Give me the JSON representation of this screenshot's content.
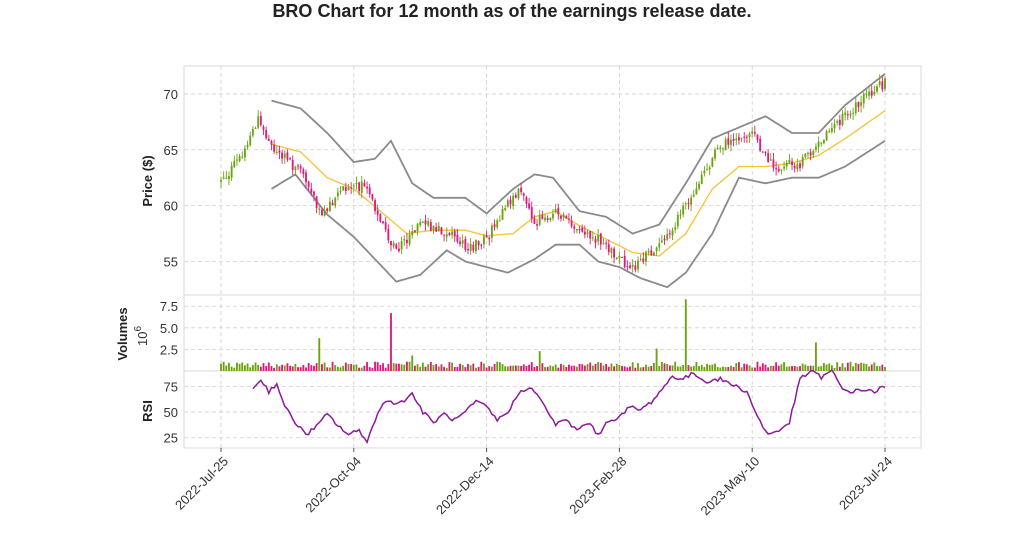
{
  "chart_data": {
    "type": "candlestick",
    "title": "BRO Chart for 12 month as of the earnings release date.",
    "x_ticks": [
      "2022-Jul-25",
      "2022-Oct-04",
      "2022-Dec-14",
      "2023-Feb-28",
      "2023-May-10",
      "2023-Jul-24"
    ],
    "panels": {
      "price": {
        "ylabel": "Price ($)",
        "yticks": [
          55,
          60,
          65,
          70
        ],
        "ylim": [
          52.0,
          72.5
        ],
        "close_keypoints": [
          [
            0,
            62.2
          ],
          [
            8,
            64.5
          ],
          [
            14,
            67.9
          ],
          [
            18,
            65.5
          ],
          [
            30,
            63.0
          ],
          [
            38,
            59.2
          ],
          [
            45,
            61.5
          ],
          [
            55,
            61.8
          ],
          [
            60,
            58.5
          ],
          [
            66,
            55.8
          ],
          [
            75,
            58.5
          ],
          [
            85,
            57.6
          ],
          [
            93,
            56.2
          ],
          [
            100,
            57.0
          ],
          [
            106,
            59.5
          ],
          [
            112,
            61.5
          ],
          [
            118,
            58.5
          ],
          [
            126,
            59.5
          ],
          [
            134,
            58.0
          ],
          [
            142,
            57.0
          ],
          [
            150,
            55.3
          ],
          [
            155,
            54.3
          ],
          [
            162,
            56.0
          ],
          [
            170,
            58.0
          ],
          [
            180,
            62.0
          ],
          [
            188,
            65.5
          ],
          [
            196,
            66.0
          ],
          [
            200,
            66.5
          ],
          [
            204,
            64.5
          ],
          [
            210,
            63.5
          ],
          [
            218,
            63.8
          ],
          [
            226,
            66.0
          ],
          [
            235,
            68.0
          ],
          [
            243,
            70.0
          ],
          [
            250,
            71.0
          ]
        ],
        "upper_band_keypoints": [
          [
            19,
            69.4
          ],
          [
            30,
            68.7
          ],
          [
            40,
            66.5
          ],
          [
            50,
            63.9
          ],
          [
            58,
            64.2
          ],
          [
            64,
            65.8
          ],
          [
            72,
            62.0
          ],
          [
            80,
            60.7
          ],
          [
            92,
            60.7
          ],
          [
            100,
            59.3
          ],
          [
            110,
            61.5
          ],
          [
            118,
            62.8
          ],
          [
            125,
            62.5
          ],
          [
            135,
            59.5
          ],
          [
            145,
            59.0
          ],
          [
            155,
            57.5
          ],
          [
            165,
            58.3
          ],
          [
            175,
            62.0
          ],
          [
            185,
            66.0
          ],
          [
            195,
            67.0
          ],
          [
            205,
            68.0
          ],
          [
            215,
            66.5
          ],
          [
            225,
            66.5
          ],
          [
            235,
            69.0
          ],
          [
            250,
            71.8
          ]
        ],
        "middle_band_keypoints": [
          [
            19,
            65.5
          ],
          [
            30,
            64.8
          ],
          [
            40,
            62.5
          ],
          [
            50,
            61.5
          ],
          [
            60,
            59.5
          ],
          [
            70,
            57.5
          ],
          [
            80,
            57.8
          ],
          [
            92,
            57.8
          ],
          [
            100,
            57.3
          ],
          [
            110,
            57.5
          ],
          [
            118,
            59.0
          ],
          [
            126,
            59.5
          ],
          [
            135,
            58.2
          ],
          [
            145,
            57.0
          ],
          [
            155,
            55.8
          ],
          [
            165,
            55.5
          ],
          [
            175,
            57.5
          ],
          [
            185,
            61.5
          ],
          [
            195,
            63.5
          ],
          [
            205,
            63.5
          ],
          [
            215,
            63.8
          ],
          [
            225,
            64.5
          ],
          [
            235,
            66.0
          ],
          [
            250,
            68.5
          ]
        ],
        "lower_band_keypoints": [
          [
            19,
            61.5
          ],
          [
            28,
            62.8
          ],
          [
            40,
            59.2
          ],
          [
            50,
            57.2
          ],
          [
            58,
            55.2
          ],
          [
            66,
            53.2
          ],
          [
            75,
            53.8
          ],
          [
            85,
            56.0
          ],
          [
            92,
            55.0
          ],
          [
            100,
            54.5
          ],
          [
            108,
            54.0
          ],
          [
            118,
            55.2
          ],
          [
            126,
            56.5
          ],
          [
            135,
            56.5
          ],
          [
            142,
            55.0
          ],
          [
            150,
            54.5
          ],
          [
            158,
            53.5
          ],
          [
            168,
            52.7
          ],
          [
            175,
            54.0
          ],
          [
            185,
            57.5
          ],
          [
            195,
            62.5
          ],
          [
            205,
            62.0
          ],
          [
            215,
            62.5
          ],
          [
            225,
            62.5
          ],
          [
            235,
            63.5
          ],
          [
            250,
            65.8
          ]
        ]
      },
      "volume": {
        "ylabel": "Volumes",
        "exponent_label": "10",
        "exponent": "6",
        "yticks": [
          "2.5",
          "5.0",
          "7.5"
        ],
        "ylim": [
          0,
          8.8
        ],
        "base_level": 0.8,
        "spikes": [
          [
            37,
            3.8
          ],
          [
            64,
            6.7
          ],
          [
            72,
            1.8
          ],
          [
            120,
            2.3
          ],
          [
            164,
            2.6
          ],
          [
            175,
            8.3
          ],
          [
            224,
            3.3
          ]
        ]
      },
      "rsi": {
        "ylabel": "RSI",
        "yticks": [
          25,
          50,
          75
        ],
        "ylim": [
          15,
          90
        ],
        "keypoints": [
          [
            12,
            72
          ],
          [
            15,
            82
          ],
          [
            18,
            70
          ],
          [
            21,
            78
          ],
          [
            24,
            55
          ],
          [
            28,
            40
          ],
          [
            32,
            28
          ],
          [
            36,
            36
          ],
          [
            40,
            48
          ],
          [
            44,
            37
          ],
          [
            48,
            28
          ],
          [
            52,
            32
          ],
          [
            55,
            22
          ],
          [
            59,
            48
          ],
          [
            62,
            62
          ],
          [
            67,
            58
          ],
          [
            72,
            68
          ],
          [
            76,
            50
          ],
          [
            80,
            40
          ],
          [
            84,
            48
          ],
          [
            88,
            42
          ],
          [
            92,
            50
          ],
          [
            96,
            60
          ],
          [
            100,
            55
          ],
          [
            104,
            42
          ],
          [
            108,
            50
          ],
          [
            112,
            68
          ],
          [
            116,
            75
          ],
          [
            118,
            70
          ],
          [
            122,
            55
          ],
          [
            126,
            38
          ],
          [
            130,
            42
          ],
          [
            134,
            32
          ],
          [
            138,
            40
          ],
          [
            142,
            28
          ],
          [
            146,
            42
          ],
          [
            150,
            45
          ],
          [
            154,
            55
          ],
          [
            158,
            52
          ],
          [
            162,
            60
          ],
          [
            166,
            72
          ],
          [
            170,
            85
          ],
          [
            174,
            82
          ],
          [
            178,
            88
          ],
          [
            182,
            80
          ],
          [
            188,
            82
          ],
          [
            194,
            75
          ],
          [
            198,
            70
          ],
          [
            202,
            45
          ],
          [
            206,
            28
          ],
          [
            210,
            32
          ],
          [
            214,
            40
          ],
          [
            218,
            82
          ],
          [
            222,
            90
          ],
          [
            226,
            84
          ],
          [
            230,
            90
          ],
          [
            234,
            72
          ],
          [
            238,
            70
          ],
          [
            242,
            72
          ],
          [
            246,
            70
          ],
          [
            250,
            75
          ]
        ]
      }
    },
    "colors": {
      "up": "#6aa40f",
      "down": "#de1a7a",
      "bands": "#8a8a8a",
      "middle": "#f6c230",
      "rsi": "#8b1a9b",
      "grid": "#cfcfcf"
    }
  }
}
